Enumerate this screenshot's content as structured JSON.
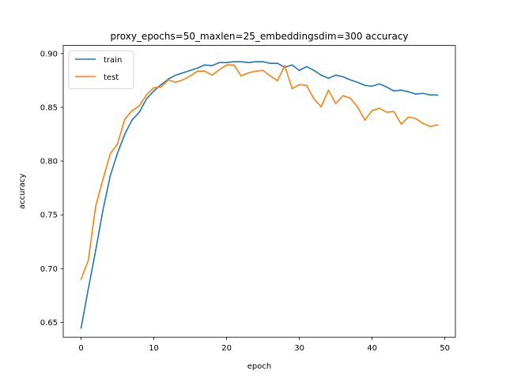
{
  "chart_data": {
    "type": "line",
    "title": "proxy_epochs=50_maxlen=25_embeddingsdim=300 accuracy",
    "xlabel": "epoch",
    "ylabel": "accuracy",
    "xlim": [
      -2.45,
      51.45
    ],
    "ylim": [
      0.6363,
      0.9075
    ],
    "xticks": [
      0,
      10,
      20,
      30,
      40,
      50
    ],
    "xtick_labels": [
      "0",
      "10",
      "20",
      "30",
      "40",
      "50"
    ],
    "yticks": [
      0.65,
      0.7,
      0.75,
      0.8,
      0.85,
      0.9
    ],
    "ytick_labels": [
      "0.65",
      "0.70",
      "0.75",
      "0.80",
      "0.85",
      "0.90"
    ],
    "grid": false,
    "legend_position": "upper-left",
    "x": [
      0,
      1,
      2,
      3,
      4,
      5,
      6,
      7,
      8,
      9,
      10,
      11,
      12,
      13,
      14,
      15,
      16,
      17,
      18,
      19,
      20,
      21,
      22,
      23,
      24,
      25,
      26,
      27,
      28,
      29,
      30,
      31,
      32,
      33,
      34,
      35,
      36,
      37,
      38,
      39,
      40,
      41,
      42,
      43,
      44,
      45,
      46,
      47,
      48,
      49
    ],
    "series": [
      {
        "name": "train",
        "color": "#1f77b4",
        "values": [
          0.6448,
          0.6814,
          0.7167,
          0.7542,
          0.786,
          0.8073,
          0.8249,
          0.8381,
          0.8454,
          0.8579,
          0.8652,
          0.8711,
          0.8762,
          0.8799,
          0.8821,
          0.8843,
          0.8865,
          0.8894,
          0.8887,
          0.8916,
          0.8916,
          0.8924,
          0.8924,
          0.8916,
          0.8924,
          0.8924,
          0.8909,
          0.8909,
          0.8872,
          0.8894,
          0.8843,
          0.8879,
          0.8843,
          0.8799,
          0.877,
          0.8799,
          0.8784,
          0.8755,
          0.8733,
          0.8704,
          0.8696,
          0.8718,
          0.8689,
          0.8652,
          0.866,
          0.8645,
          0.8623,
          0.863,
          0.8615,
          0.8615
        ]
      },
      {
        "name": "test",
        "color": "#ff7f0e",
        "values": [
          0.6903,
          0.7078,
          0.7579,
          0.7829,
          0.8065,
          0.816,
          0.8388,
          0.8469,
          0.8513,
          0.8616,
          0.8682,
          0.8689,
          0.8755,
          0.8733,
          0.8755,
          0.8792,
          0.8836,
          0.8836,
          0.8799,
          0.885,
          0.8894,
          0.8894,
          0.8792,
          0.8821,
          0.8836,
          0.8843,
          0.8792,
          0.8748,
          0.8887,
          0.8674,
          0.8711,
          0.8704,
          0.8579,
          0.8505,
          0.866,
          0.8535,
          0.8608,
          0.8586,
          0.8505,
          0.8381,
          0.8469,
          0.8491,
          0.8454,
          0.8461,
          0.8344,
          0.841,
          0.8395,
          0.8351,
          0.8322,
          0.8337
        ]
      }
    ]
  }
}
